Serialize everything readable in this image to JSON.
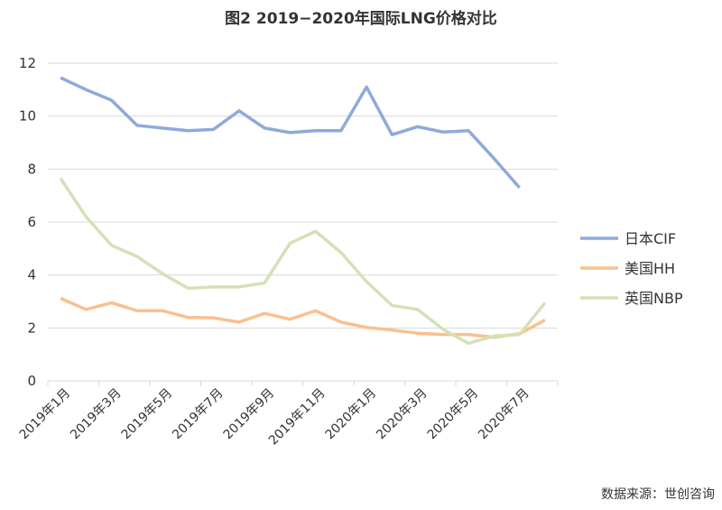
{
  "chart_data": {
    "type": "line",
    "title": "图2 2019−2020年国际LNG价格对比",
    "source": "数据来源：世创咨询",
    "ylim": [
      0,
      12
    ],
    "yticks": [
      0,
      2,
      4,
      6,
      8,
      10,
      12
    ],
    "grid": true,
    "legend_position": "right",
    "categories": [
      "2019年1月",
      "2019年2月",
      "2019年3月",
      "2019年4月",
      "2019年5月",
      "2019年6月",
      "2019年7月",
      "2019年8月",
      "2019年9月",
      "2019年10月",
      "2019年11月",
      "2019年12月",
      "2020年1月",
      "2020年2月",
      "2020年3月",
      "2020年4月",
      "2020年5月",
      "2020年6月",
      "2020年7月",
      "2020年8月"
    ],
    "tick_labels": [
      "2019年1月",
      "2019年3月",
      "2019年5月",
      "2019年7月",
      "2019年9月",
      "2019年11月",
      "2020年1月",
      "2020年3月",
      "2020年5月",
      "2020年7月"
    ],
    "series": [
      {
        "name": "日本CIF",
        "color": "#8eaadb",
        "values": [
          11.45,
          11.0,
          10.6,
          9.65,
          9.55,
          9.45,
          9.5,
          10.2,
          9.55,
          9.38,
          9.45,
          9.45,
          11.1,
          9.3,
          9.6,
          9.4,
          9.45,
          8.4,
          7.3,
          null
        ]
      },
      {
        "name": "美国HH",
        "color": "#f9c08f",
        "values": [
          3.12,
          2.7,
          2.95,
          2.65,
          2.65,
          2.4,
          2.38,
          2.22,
          2.55,
          2.33,
          2.65,
          2.22,
          2.02,
          1.92,
          1.8,
          1.75,
          1.75,
          1.65,
          1.78,
          2.3
        ]
      },
      {
        "name": "英国NBP",
        "color": "#d3e2b6",
        "values": [
          7.65,
          6.2,
          5.12,
          4.7,
          4.05,
          3.5,
          3.55,
          3.55,
          3.7,
          5.2,
          5.65,
          4.85,
          3.75,
          2.85,
          2.7,
          1.95,
          1.42,
          1.7,
          1.75,
          2.95
        ]
      }
    ]
  }
}
